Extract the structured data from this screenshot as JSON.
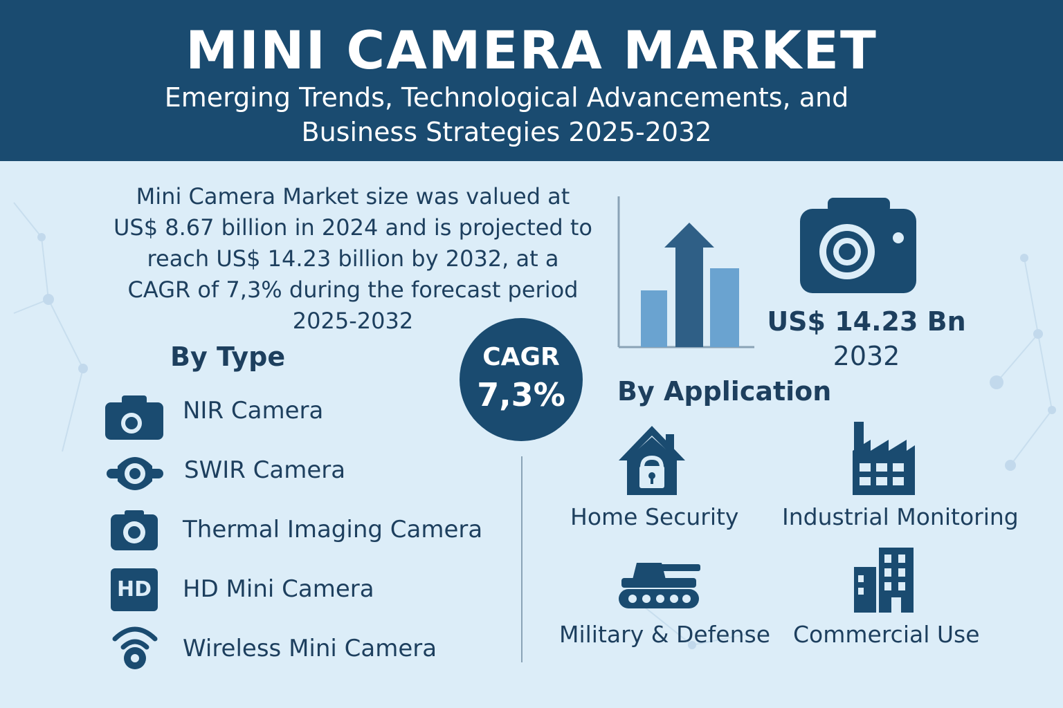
{
  "header": {
    "title": "MINI CAMERA MARKET",
    "subtitle_line1": "Emerging Trends, Technological Advancements,  and",
    "subtitle_line2": "Business Strategies 2025-2032"
  },
  "summary": {
    "line1": "Mini Camera Market size was valued at",
    "line2": "US$ 8.67 billion in 2024 and is projected to",
    "line3": "reach US$ 14.23 billion by 2032, at a",
    "line4": "CAGR of 7,3% during the forecast period",
    "line5": "2025-2032"
  },
  "by_type": {
    "title": "By Type",
    "items": [
      {
        "label": "NIR Camera",
        "icon": "camera-icon"
      },
      {
        "label": "SWIR Camera",
        "icon": "swir-camera-icon"
      },
      {
        "label": "Thermal Imaging Camera",
        "icon": "thermal-camera-icon"
      },
      {
        "label": "HD Mini Camera",
        "icon": "hd-icon",
        "badge": "HD"
      },
      {
        "label": "Wireless Mini Camera",
        "icon": "wireless-camera-icon"
      }
    ]
  },
  "cagr": {
    "label": "CAGR",
    "value": "7,3%"
  },
  "forecast": {
    "value": "US$ 14.23 Bn",
    "year": "2032"
  },
  "by_application": {
    "title": "By Application",
    "items": [
      {
        "label": "Home Security",
        "icon": "house-lock-icon"
      },
      {
        "label": "Industrial Monitoring",
        "icon": "factory-icon"
      },
      {
        "label": "Military & Defense",
        "icon": "tank-icon"
      },
      {
        "label": "Commercial Use",
        "icon": "office-building-icon"
      }
    ]
  },
  "colors": {
    "navy": "#1a4b70",
    "background": "#dcedf8",
    "bar": "#6aa3d0",
    "text": "#1d3f5e"
  }
}
